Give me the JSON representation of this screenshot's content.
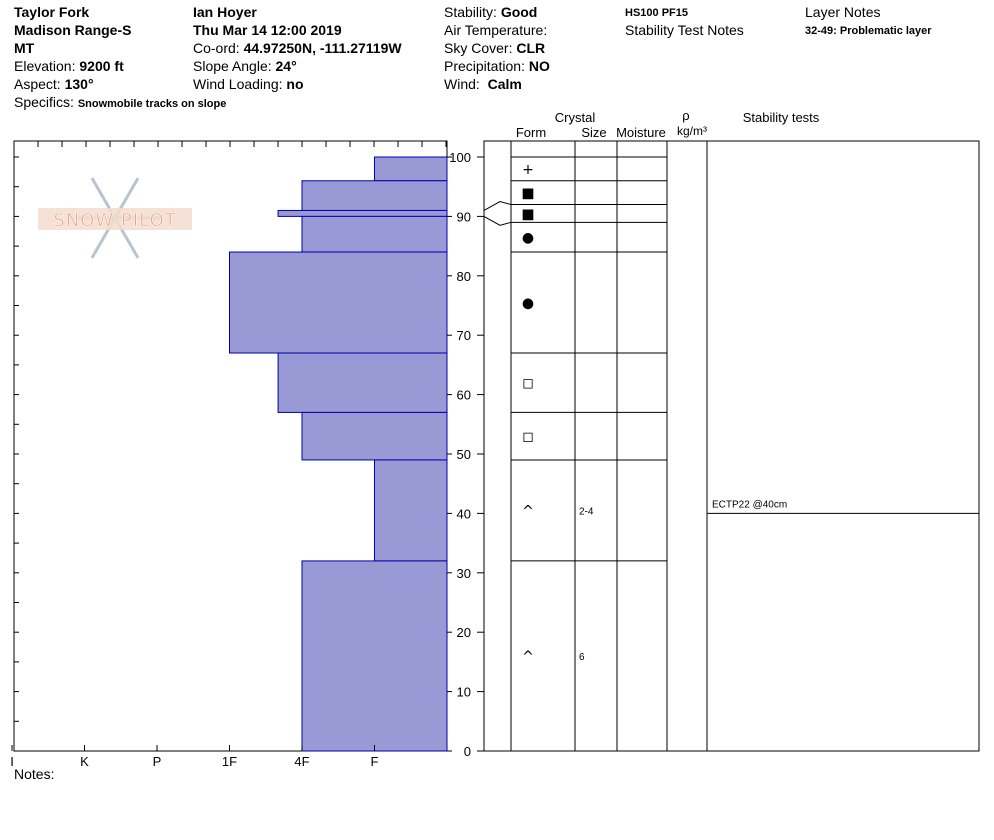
{
  "header": {
    "location": "Taylor Fork",
    "range": "Madison Range-S",
    "state": "MT",
    "elevation_label": "Elevation:",
    "elevation": "9200 ft",
    "aspect_label": "Aspect:",
    "aspect": "130°",
    "observer": "Ian Hoyer",
    "datetime": "Thu Mar 14 12:00 2019",
    "coord_label": "Co-ord:",
    "coord": "44.97250N, -111.27119W",
    "slope_label": "Slope Angle:",
    "slope": "24°",
    "wind_loading_label": "Wind Loading:",
    "wind_loading": "no",
    "stability_label": "Stability:",
    "stability": "Good",
    "air_temp_label": "Air Temperature:",
    "sky_label": "Sky Cover:",
    "sky": "CLR",
    "precip_label": "Precipitation:",
    "precip": "NO",
    "wind_label": "Wind:",
    "wind": "Calm",
    "hs_pf": "HS100  PF15",
    "stability_notes_title": "Stability Test Notes",
    "layer_notes_title": "Layer Notes",
    "layer_note": "32-49: Problematic layer",
    "specifics_label": "Specifics:",
    "specifics": "Snowmobile tracks on slope",
    "notes_label": "Notes:"
  },
  "watermark": "SNOW PILOT",
  "chart_data": {
    "type": "bar",
    "title": "",
    "hardness_scale": [
      "I",
      "K",
      "P",
      "1F",
      "4F",
      "F"
    ],
    "hardness_values": {
      "F": 1,
      "4F": 2,
      "1F": 3,
      "P": 4,
      "K": 5,
      "I": 6
    },
    "ylim": [
      0,
      100
    ],
    "yticks": [
      0,
      10,
      20,
      30,
      40,
      50,
      60,
      70,
      80,
      90,
      100
    ],
    "layers": [
      {
        "top": 100,
        "bottom": 96,
        "hardness": "F"
      },
      {
        "top": 96,
        "bottom": 91,
        "hardness": "4F"
      },
      {
        "top": 91,
        "bottom": 90,
        "hardness": "1F-"
      },
      {
        "top": 90,
        "bottom": 84,
        "hardness": "4F"
      },
      {
        "top": 84,
        "bottom": 67,
        "hardness": "1F"
      },
      {
        "top": 67,
        "bottom": 57,
        "hardness": "4F-"
      },
      {
        "top": 57,
        "bottom": 49,
        "hardness": "4F"
      },
      {
        "top": 49,
        "bottom": 32,
        "hardness": "F"
      },
      {
        "top": 32,
        "bottom": 0,
        "hardness": "4F"
      }
    ],
    "hardness_numeric": [
      1,
      2,
      2.33,
      2,
      3,
      2.33,
      2,
      1,
      2
    ],
    "layer_boundaries": [
      100,
      96,
      92,
      89,
      84,
      67,
      57,
      49,
      32,
      0
    ],
    "crystals": [
      {
        "depth": 98,
        "form": "+",
        "size": ""
      },
      {
        "depth": 94,
        "form": "■",
        "size": ""
      },
      {
        "depth": 90.5,
        "form": "■",
        "size": ""
      },
      {
        "depth": 86.5,
        "form": "●",
        "size": ""
      },
      {
        "depth": 75.5,
        "form": "●",
        "size": ""
      },
      {
        "depth": 62,
        "form": "◻",
        "size": ""
      },
      {
        "depth": 53,
        "form": "◻",
        "size": ""
      },
      {
        "depth": 40.5,
        "form": "^",
        "size": "2-4"
      },
      {
        "depth": 16,
        "form": "^",
        "size": "6"
      }
    ],
    "columns": {
      "crystal": "Crystal",
      "form": "Form",
      "size": "Size",
      "moisture": "Moisture",
      "rho": "ρ",
      "density_unit": "kg/m³",
      "stability_tests": "Stability tests"
    },
    "stability_tests": [
      {
        "depth": 40,
        "label": "ECTP22 @40cm"
      }
    ]
  },
  "colors": {
    "bar_fill": "#9999d6",
    "bar_stroke": "#0000aa",
    "watermark": "#e8a88a",
    "snowflake": "#b8c4d0"
  }
}
